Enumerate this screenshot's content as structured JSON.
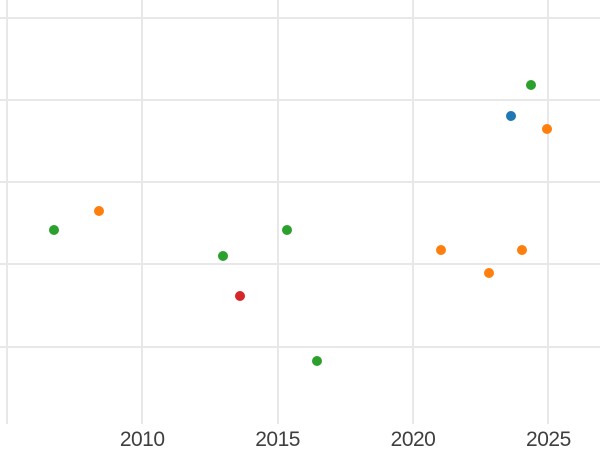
{
  "chart_data": {
    "type": "scatter",
    "title": "",
    "xlabel": "",
    "ylabel": "",
    "grid": true,
    "legend": "none",
    "background": "#ffffff",
    "gridline_color": "#e8e8e8",
    "tick_label_color": "#3f3f3f",
    "x_ticks": [
      {
        "year": 2005,
        "label": ""
      },
      {
        "year": 2010,
        "label": "2010"
      },
      {
        "year": 2015,
        "label": "2015"
      },
      {
        "year": 2020,
        "label": "2020"
      },
      {
        "year": 2025,
        "label": "2025"
      }
    ],
    "x_axis_visible_range": [
      2005.0,
      2026.9
    ],
    "y_gridline_levels": [
      0,
      1,
      2,
      3,
      4
    ],
    "y_axis_note": "y-axis tick labels are not visible in the cropped view; point y-values are expressed in gridline units counted up from the lowest visible gridline",
    "series": [
      {
        "name": "green",
        "color": "#2ca02c",
        "points": [
          {
            "x": 2006.74,
            "y": 1.42
          },
          {
            "x": 2012.99,
            "y": 1.1
          },
          {
            "x": 2015.36,
            "y": 1.42
          },
          {
            "x": 2016.46,
            "y": -0.18
          },
          {
            "x": 2024.35,
            "y": 3.18
          }
        ]
      },
      {
        "name": "orange",
        "color": "#ff7f0e",
        "points": [
          {
            "x": 2008.41,
            "y": 1.65
          },
          {
            "x": 2021.04,
            "y": 1.17
          },
          {
            "x": 2022.82,
            "y": 0.9
          },
          {
            "x": 2024.02,
            "y": 1.17
          },
          {
            "x": 2024.94,
            "y": 2.64
          }
        ]
      },
      {
        "name": "blue",
        "color": "#1f77b4",
        "points": [
          {
            "x": 2023.63,
            "y": 2.8
          }
        ]
      },
      {
        "name": "red",
        "color": "#d62728",
        "points": [
          {
            "x": 2013.62,
            "y": 0.61
          }
        ]
      }
    ]
  }
}
